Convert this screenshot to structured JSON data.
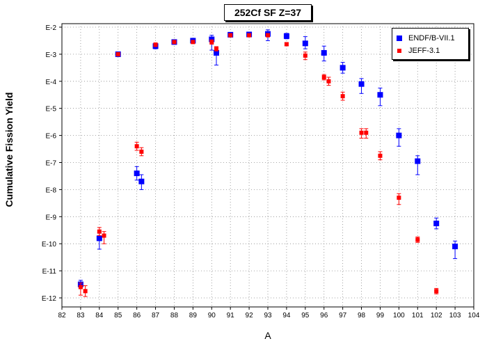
{
  "chart_data": {
    "type": "scatter",
    "title": "252Cf SF Z=37",
    "xlabel": "A",
    "ylabel": "Cumulative Fission Yield",
    "xlim": [
      82,
      104
    ],
    "ylim_exponent": [
      -12,
      -2
    ],
    "yscale": "log",
    "grid": true,
    "legend_position": "top-right",
    "x_ticks": [
      "82",
      "83",
      "84",
      "85",
      "86",
      "87",
      "88",
      "89",
      "90",
      "91",
      "92",
      "93",
      "94",
      "95",
      "96",
      "97",
      "98",
      "99",
      "100",
      "101",
      "102",
      "103",
      "104"
    ],
    "y_ticks": [
      {
        "label": "E-2",
        "exp": -2
      },
      {
        "label": "E-3",
        "exp": -3
      },
      {
        "label": "E-4",
        "exp": -4
      },
      {
        "label": "E-5",
        "exp": -5
      },
      {
        "label": "E-6",
        "exp": -6
      },
      {
        "label": "E-7",
        "exp": -7
      },
      {
        "label": "E-8",
        "exp": -8
      },
      {
        "label": "E-9",
        "exp": -9
      },
      {
        "label": "E-10",
        "exp": -10
      },
      {
        "label": "E-11",
        "exp": -11
      },
      {
        "label": "E-12",
        "exp": -12
      }
    ],
    "series": [
      {
        "name": "ENDF/B-VII.1",
        "color": "#0000ff",
        "marker": "square",
        "points": [
          {
            "x": 83,
            "y": -11.5,
            "lo": -11.6,
            "hi": -11.35
          },
          {
            "x": 84,
            "y": -9.8,
            "lo": -10.2,
            "hi": -9.6
          },
          {
            "x": 85,
            "y": -3.0,
            "lo": -3.05,
            "hi": -2.95
          },
          {
            "x": 86,
            "y": -7.4,
            "lo": -7.65,
            "hi": -7.15
          },
          {
            "x": 86.25,
            "y": -7.7,
            "lo": -8.0,
            "hi": -7.45
          },
          {
            "x": 87,
            "y": -2.7,
            "lo": -2.8,
            "hi": -2.6
          },
          {
            "x": 88,
            "y": -2.55,
            "lo": -2.62,
            "hi": -2.48
          },
          {
            "x": 89,
            "y": -2.5,
            "lo": -2.57,
            "hi": -2.43
          },
          {
            "x": 90,
            "y": -2.45,
            "lo": -2.85,
            "hi": -2.3
          },
          {
            "x": 90.25,
            "y": -2.95,
            "lo": -3.4,
            "hi": -2.8
          },
          {
            "x": 91,
            "y": -2.28,
            "lo": -2.33,
            "hi": -2.23
          },
          {
            "x": 92,
            "y": -2.27,
            "lo": -2.33,
            "hi": -2.21
          },
          {
            "x": 93,
            "y": -2.25,
            "lo": -2.5,
            "hi": -2.1
          },
          {
            "x": 94,
            "y": -2.33,
            "lo": -2.43,
            "hi": -2.23
          },
          {
            "x": 95,
            "y": -2.6,
            "lo": -2.8,
            "hi": -2.35
          },
          {
            "x": 96,
            "y": -2.95,
            "lo": -3.25,
            "hi": -2.7
          },
          {
            "x": 97,
            "y": -3.5,
            "lo": -3.7,
            "hi": -3.3
          },
          {
            "x": 98,
            "y": -4.1,
            "lo": -4.45,
            "hi": -3.9
          },
          {
            "x": 99,
            "y": -4.5,
            "lo": -4.9,
            "hi": -4.25
          },
          {
            "x": 100,
            "y": -6.0,
            "lo": -6.4,
            "hi": -5.75
          },
          {
            "x": 101,
            "y": -6.95,
            "lo": -7.45,
            "hi": -6.75
          },
          {
            "x": 102,
            "y": -9.25,
            "lo": -9.45,
            "hi": -9.05
          },
          {
            "x": 103,
            "y": -10.1,
            "lo": -10.55,
            "hi": -9.9
          }
        ]
      },
      {
        "name": "JEFF-3.1",
        "color": "#ff0000",
        "marker": "square",
        "points": [
          {
            "x": 83,
            "y": -11.6,
            "lo": -11.9,
            "hi": -11.45
          },
          {
            "x": 83.25,
            "y": -11.75,
            "lo": -11.95,
            "hi": -11.55
          },
          {
            "x": 84,
            "y": -9.55,
            "lo": -9.7,
            "hi": -9.4
          },
          {
            "x": 84.25,
            "y": -9.7,
            "lo": -10.0,
            "hi": -9.55
          },
          {
            "x": 85,
            "y": -3.0,
            "lo": -3.05,
            "hi": -2.95
          },
          {
            "x": 86,
            "y": -6.4,
            "lo": -6.55,
            "hi": -6.25
          },
          {
            "x": 86.25,
            "y": -6.6,
            "lo": -6.75,
            "hi": -6.45
          },
          {
            "x": 87,
            "y": -2.65,
            "lo": -2.72,
            "hi": -2.58
          },
          {
            "x": 88,
            "y": -2.55,
            "lo": -2.6,
            "hi": -2.5
          },
          {
            "x": 89,
            "y": -2.55,
            "lo": -2.6,
            "hi": -2.5
          },
          {
            "x": 90,
            "y": -2.55,
            "lo": -2.63,
            "hi": -2.47
          },
          {
            "x": 90.25,
            "y": -2.8,
            "lo": -2.88,
            "hi": -2.72
          },
          {
            "x": 91,
            "y": -2.3,
            "lo": -2.35,
            "hi": -2.25
          },
          {
            "x": 92,
            "y": -2.3,
            "lo": -2.35,
            "hi": -2.25
          },
          {
            "x": 93,
            "y": -2.3,
            "lo": -2.36,
            "hi": -2.24
          },
          {
            "x": 94,
            "y": -2.63,
            "lo": -2.68,
            "hi": -2.58
          },
          {
            "x": 95,
            "y": -3.05,
            "lo": -3.2,
            "hi": -2.92
          },
          {
            "x": 96,
            "y": -3.85,
            "lo": -3.95,
            "hi": -3.75
          },
          {
            "x": 96.25,
            "y": -4.0,
            "lo": -4.15,
            "hi": -3.85
          },
          {
            "x": 97,
            "y": -4.55,
            "lo": -4.7,
            "hi": -4.4
          },
          {
            "x": 98,
            "y": -5.9,
            "lo": -6.1,
            "hi": -5.75
          },
          {
            "x": 98.25,
            "y": -5.9,
            "lo": -6.1,
            "hi": -5.75
          },
          {
            "x": 99,
            "y": -6.75,
            "lo": -6.9,
            "hi": -6.6
          },
          {
            "x": 100,
            "y": -8.3,
            "lo": -8.55,
            "hi": -8.15
          },
          {
            "x": 101,
            "y": -9.85,
            "lo": -9.95,
            "hi": -9.75
          },
          {
            "x": 102,
            "y": -11.75,
            "lo": -11.85,
            "hi": -11.65
          }
        ]
      }
    ]
  }
}
